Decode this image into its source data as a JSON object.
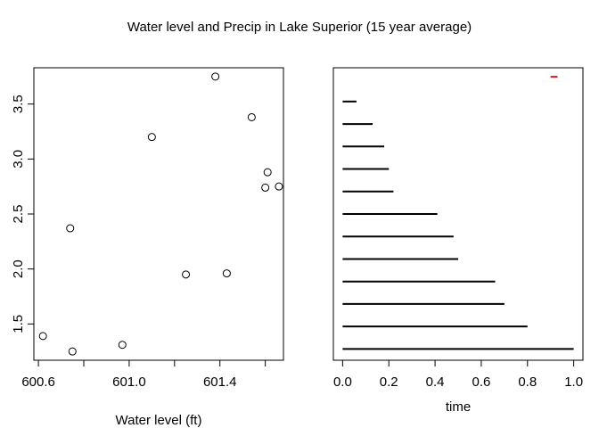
{
  "title": "Water level and Precip in Lake Superior (15 year average)",
  "colors": {
    "axis": "#000000",
    "points": "#000000",
    "segments": "#000000",
    "highlight": "#e8161a"
  },
  "chart_data": [
    {
      "type": "scatter",
      "xlabel": "Water level (ft)",
      "ylabel": "",
      "xlim": [
        600.58,
        601.68
      ],
      "ylim": [
        1.17,
        3.83
      ],
      "xticks": [
        600.6,
        601.0,
        601.4
      ],
      "xtick_labels": [
        "600.6",
        "601.0",
        "601.4"
      ],
      "yticks": [
        1.5,
        2.0,
        2.5,
        3.0,
        3.5
      ],
      "ytick_labels": [
        "1.5",
        "2.0",
        "2.5",
        "3.0",
        "3.5"
      ],
      "marker": "open-circle",
      "points": [
        {
          "x": 600.62,
          "y": 1.39
        },
        {
          "x": 600.75,
          "y": 1.25
        },
        {
          "x": 600.74,
          "y": 2.37
        },
        {
          "x": 600.97,
          "y": 1.31
        },
        {
          "x": 601.1,
          "y": 3.2
        },
        {
          "x": 601.25,
          "y": 1.95
        },
        {
          "x": 601.38,
          "y": 3.75
        },
        {
          "x": 601.43,
          "y": 1.96
        },
        {
          "x": 601.54,
          "y": 3.38
        },
        {
          "x": 601.61,
          "y": 2.88
        },
        {
          "x": 601.6,
          "y": 2.74
        },
        {
          "x": 601.66,
          "y": 2.75
        }
      ]
    },
    {
      "type": "segments",
      "xlabel": "time",
      "ylabel": "",
      "xlim": [
        -0.04,
        1.04
      ],
      "ylim": [
        0.5,
        13.5
      ],
      "xticks": [
        0.0,
        0.2,
        0.4,
        0.6,
        0.8,
        1.0
      ],
      "xtick_labels": [
        "0.0",
        "0.2",
        "0.4",
        "0.6",
        "0.8",
        "1.0"
      ],
      "yaxis_shown": false,
      "segments": [
        {
          "x0": 0,
          "x1": 1.0,
          "y": 1
        },
        {
          "x0": 0,
          "x1": 0.8,
          "y": 2
        },
        {
          "x0": 0,
          "x1": 0.7,
          "y": 3
        },
        {
          "x0": 0,
          "x1": 0.66,
          "y": 4
        },
        {
          "x0": 0,
          "x1": 0.5,
          "y": 5
        },
        {
          "x0": 0,
          "x1": 0.48,
          "y": 6
        },
        {
          "x0": 0,
          "x1": 0.41,
          "y": 7
        },
        {
          "x0": 0,
          "x1": 0.22,
          "y": 8
        },
        {
          "x0": 0,
          "x1": 0.2,
          "y": 9
        },
        {
          "x0": 0,
          "x1": 0.18,
          "y": 10
        },
        {
          "x0": 0,
          "x1": 0.13,
          "y": 11
        },
        {
          "x0": 0,
          "x1": 0.06,
          "y": 12
        }
      ],
      "highlight_segment": {
        "x0": 0.9,
        "x1": 0.93,
        "y": 13.1
      }
    }
  ]
}
